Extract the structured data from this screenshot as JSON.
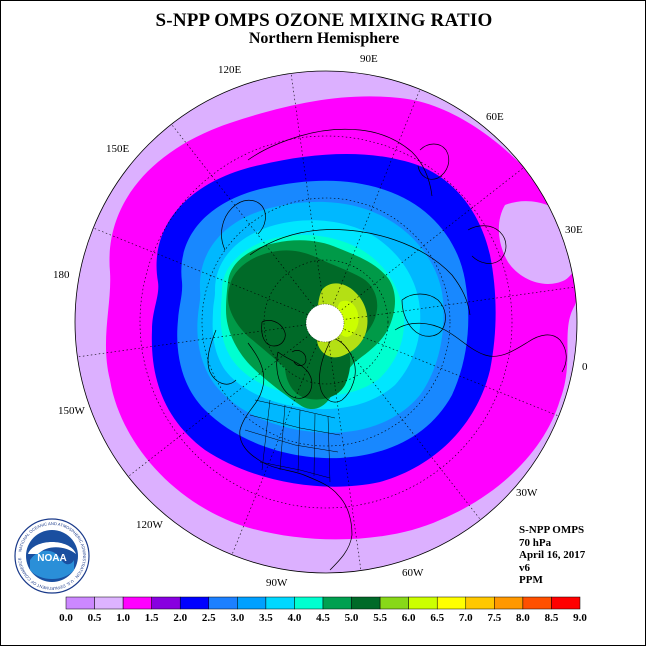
{
  "title": "S-NPP OMPS OZONE MIXING RATIO",
  "subtitle": "Northern Hemisphere",
  "longitude_labels": [
    "90E",
    "60E",
    "30E",
    "0",
    "30W",
    "60W",
    "90W",
    "120W",
    "150W",
    "180",
    "150E",
    "120E"
  ],
  "info": {
    "instrument": "S-NPP OMPS",
    "level": "70 hPa",
    "date": "April 16, 2017",
    "version": "v6",
    "units": "PPM"
  },
  "logo_text": "NOAA",
  "logo_ring_text": "NATIONAL OCEANIC AND ATMOSPHERIC ADMINISTRATION · U.S. DEPARTMENT OF COMMERCE",
  "colorbar": {
    "ticks": [
      "0.0",
      "0.5",
      "1.0",
      "1.5",
      "2.0",
      "2.5",
      "3.0",
      "3.5",
      "4.0",
      "4.5",
      "5.0",
      "5.5",
      "6.0",
      "6.5",
      "7.0",
      "7.5",
      "8.0",
      "8.5",
      "9.0"
    ],
    "colors": [
      "#cc88ff",
      "#ddb3ff",
      "#ff00ff",
      "#8800e0",
      "#0000ff",
      "#1c80ff",
      "#00a0ff",
      "#00d8ff",
      "#00ffd0",
      "#00a050",
      "#006a28",
      "#88d818",
      "#ccff00",
      "#ffff00",
      "#ffc800",
      "#ff9800",
      "#ff5000",
      "#ff0000",
      "#8b5a3c"
    ]
  },
  "colors": {
    "background_low": "#dcb0ff",
    "magenta": "#ff00ff",
    "blue": "#0000ff",
    "mid_blue": "#1888ff",
    "light_blue": "#00b8ff",
    "cyan": "#00e6ff",
    "aqua": "#00ffd0",
    "green": "#009a48",
    "dark_green": "#006a28",
    "yellow_green": "#b4e014",
    "yellow": "#ccff00"
  }
}
